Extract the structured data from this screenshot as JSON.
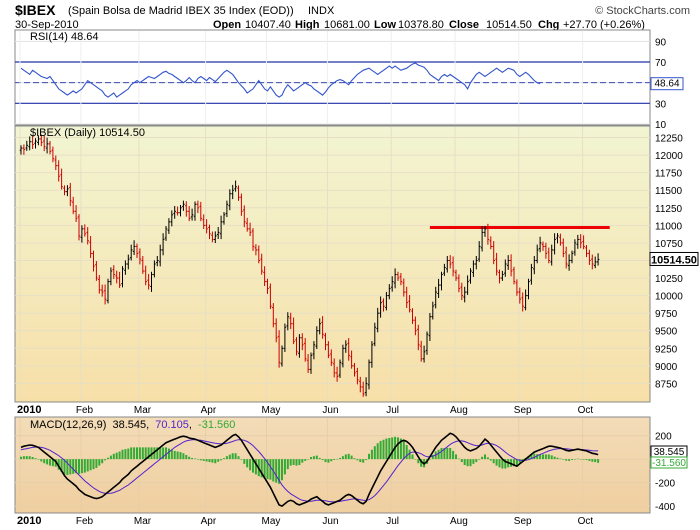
{
  "header": {
    "symbol": "$IBEX",
    "description": "(Spain Bolsa de Madrid IBEX 35 Index (EOD))",
    "exchange": "INDX",
    "brand": "© StockCharts.com",
    "date": "30-Sep-2010",
    "open_label": "Open",
    "open": "10407.40",
    "high_label": "High",
    "high": "10681.00",
    "low_label": "Low",
    "low": "10378.80",
    "close_label": "Close",
    "close": "10514.50",
    "chg_label": "Chg",
    "chg": "+27.70 (+0.26%)"
  },
  "colors": {
    "up_bar": "#000000",
    "down_bar": "#cc0000",
    "rsi_line": "#3355cc",
    "macd_line": "#000000",
    "signal_line": "#5522cc",
    "histogram": "#33aa33",
    "resistance": "#ee0000"
  },
  "chart_data": [
    {
      "type": "line",
      "panel": "rsi",
      "label": "RSI(14) 48.64",
      "last_value_label": "48.64",
      "ylim": [
        10,
        100
      ],
      "yticks": [
        90,
        70,
        50,
        30,
        10
      ],
      "bands": [
        70,
        30
      ],
      "x_step": "trading-day",
      "x_start": "2010-01-04",
      "values": [
        64,
        62,
        60,
        58,
        62,
        60,
        58,
        56,
        55,
        54,
        56,
        52,
        48,
        44,
        42,
        40,
        38,
        40,
        42,
        40,
        42,
        44,
        48,
        52,
        50,
        48,
        46,
        44,
        42,
        38,
        36,
        38,
        40,
        36,
        38,
        40,
        42,
        44,
        48,
        50,
        52,
        50,
        52,
        54,
        56,
        55,
        54,
        56,
        58,
        60,
        61,
        59,
        58,
        56,
        54,
        52,
        50,
        52,
        55,
        52,
        50,
        54,
        56,
        54,
        52,
        55,
        53,
        51,
        54,
        57,
        60,
        62,
        60,
        58,
        54,
        50,
        47,
        44,
        40,
        42,
        44,
        48,
        52,
        48,
        44,
        42,
        46,
        42,
        38,
        36,
        38,
        44,
        48,
        45,
        42,
        44,
        46,
        48,
        50,
        48,
        47,
        44,
        42,
        40,
        38,
        41,
        45,
        48,
        50,
        52,
        53,
        52,
        50,
        48,
        52,
        55,
        58,
        60,
        62,
        63,
        64,
        62,
        60,
        58,
        60,
        62,
        64,
        66,
        64,
        66,
        64,
        62,
        63,
        64,
        66,
        68,
        69,
        67,
        66,
        65,
        62,
        58,
        56,
        54,
        52,
        56,
        58,
        56,
        58,
        56,
        54,
        52,
        50,
        48,
        44,
        50,
        54,
        58,
        60,
        58,
        56,
        58,
        60,
        62,
        64,
        62,
        60,
        62,
        64,
        63,
        62,
        58,
        56,
        58,
        60,
        58,
        55,
        52,
        50,
        49
      ]
    },
    {
      "type": "ohlc",
      "panel": "price",
      "label": "$IBEX (Daily) 10514.50",
      "last_value_label": "10514.50",
      "ylim": [
        8500,
        12400
      ],
      "yticks": [
        12250,
        12000,
        11750,
        11500,
        11250,
        11000,
        10750,
        10500,
        10250,
        10000,
        9750,
        9500,
        9250,
        9000,
        8750
      ],
      "x_step": "trading-day",
      "x_start": "2010-01-04",
      "closes": [
        12100,
        12080,
        12140,
        12190,
        12150,
        12200,
        12230,
        12180,
        12120,
        12160,
        12050,
        11950,
        11850,
        11700,
        11550,
        11480,
        11520,
        11350,
        11200,
        11100,
        10850,
        10950,
        10880,
        10780,
        10600,
        10420,
        10250,
        10080,
        10050,
        9950,
        10200,
        10350,
        10300,
        10250,
        10150,
        10380,
        10450,
        10520,
        10650,
        10700,
        10600,
        10520,
        10350,
        10200,
        10150,
        10300,
        10450,
        10500,
        10650,
        10800,
        10950,
        11050,
        11150,
        11200,
        11180,
        11250,
        11300,
        11200,
        11100,
        11150,
        11300,
        11250,
        11100,
        11000,
        10950,
        10880,
        10800,
        10850,
        10900,
        11050,
        11150,
        11300,
        11450,
        11500,
        11550,
        11400,
        11200,
        11050,
        10950,
        10900,
        10700,
        10650,
        10500,
        10350,
        10200,
        10100,
        9850,
        9600,
        9400,
        9050,
        9250,
        9550,
        9700,
        9600,
        9350,
        9200,
        9400,
        9300,
        9100,
        8950,
        9150,
        9300,
        9500,
        9600,
        9450,
        9300,
        9150,
        9050,
        8900,
        8850,
        9050,
        9250,
        9300,
        9150,
        9000,
        8900,
        8800,
        8700,
        8600,
        8750,
        9050,
        9300,
        9550,
        9750,
        9900,
        9850,
        10000,
        10100,
        10200,
        10300,
        10250,
        10200,
        10050,
        9900,
        9800,
        9650,
        9500,
        9300,
        9100,
        9200,
        9450,
        9700,
        9850,
        10050,
        10150,
        10300,
        10400,
        10500,
        10450,
        10350,
        10250,
        10100,
        10000,
        10050,
        10200,
        10350,
        10450,
        10500,
        10700,
        10900,
        10950,
        10800,
        10700,
        10500,
        10350,
        10250,
        10300,
        10450,
        10500,
        10350,
        10200,
        10050,
        9950,
        9850,
        10000,
        10200,
        10400,
        10500,
        10650,
        10750,
        10700,
        10600,
        10500,
        10650,
        10800,
        10850,
        10750,
        10600,
        10450,
        10500,
        10600,
        10750,
        10800,
        10750,
        10700,
        10600,
        10500,
        10450,
        10480,
        10514.5
      ],
      "resistance": 10970,
      "resistance_range": [
        "2010-07-20",
        "2010-10-15"
      ]
    },
    {
      "type": "line",
      "panel": "macd",
      "label": "MACD(12,26,9) 38.545, 70.105, -31.560",
      "legend": {
        "macd": "38.545",
        "signal": "70.105",
        "histogram": "-31.560"
      },
      "label_prefix": "MACD(12,26,9)",
      "last_value_labels": [
        "38.545",
        "-31.560"
      ],
      "ylim": [
        -450,
        350
      ],
      "yticks": [
        200,
        0,
        -200,
        -400
      ],
      "x_step": "trading-day",
      "x_start": "2010-01-04",
      "macd": [
        100,
        110,
        115,
        120,
        118,
        110,
        100,
        80,
        60,
        40,
        20,
        0,
        -20,
        -60,
        -100,
        -140,
        -170,
        -190,
        -210,
        -230,
        -260,
        -280,
        -300,
        -310,
        -320,
        -330,
        -335,
        -330,
        -320,
        -300,
        -280,
        -260,
        -240,
        -220,
        -200,
        -170,
        -150,
        -130,
        -100,
        -80,
        -60,
        -40,
        -20,
        0,
        20,
        40,
        60,
        80,
        100,
        120,
        140,
        150,
        160,
        170,
        180,
        190,
        195,
        190,
        180,
        175,
        170,
        160,
        150,
        140,
        130,
        120,
        110,
        100,
        110,
        120,
        140,
        160,
        180,
        200,
        210,
        190,
        160,
        120,
        80,
        40,
        0,
        -40,
        -80,
        -120,
        -160,
        -200,
        -240,
        -290,
        -340,
        -390,
        -400,
        -380,
        -360,
        -350,
        -360,
        -380,
        -390,
        -380,
        -370,
        -360,
        -340,
        -330,
        -320,
        -340,
        -360,
        -380,
        -390,
        -380,
        -370,
        -360,
        -350,
        -330,
        -310,
        -300,
        -310,
        -330,
        -350,
        -370,
        -380,
        -360,
        -300,
        -250,
        -200,
        -150,
        -100,
        -60,
        -20,
        20,
        60,
        100,
        130,
        150,
        160,
        150,
        130,
        100,
        60,
        20,
        -20,
        -40,
        -20,
        20,
        60,
        100,
        130,
        160,
        180,
        200,
        220,
        210,
        190,
        160,
        130,
        100,
        80,
        70,
        80,
        90,
        110,
        140,
        170,
        150,
        120,
        90,
        60,
        30,
        0,
        -20,
        -30,
        -40,
        -50,
        -60,
        -40,
        -20,
        0,
        20,
        40,
        60,
        70,
        80,
        90,
        100,
        110,
        110,
        105,
        100,
        95,
        85,
        75,
        70,
        75,
        80,
        85,
        80,
        75,
        70,
        60,
        50,
        45,
        38.545
      ],
      "signal": [
        80,
        85,
        90,
        95,
        100,
        102,
        103,
        100,
        95,
        85,
        75,
        60,
        45,
        30,
        10,
        -10,
        -35,
        -60,
        -85,
        -110,
        -135,
        -160,
        -185,
        -205,
        -225,
        -245,
        -260,
        -275,
        -285,
        -290,
        -292,
        -290,
        -285,
        -275,
        -265,
        -250,
        -235,
        -220,
        -200,
        -180,
        -160,
        -140,
        -120,
        -100,
        -80,
        -60,
        -40,
        -20,
        0,
        20,
        40,
        60,
        80,
        100,
        115,
        130,
        145,
        155,
        160,
        165,
        165,
        163,
        160,
        155,
        150,
        145,
        140,
        135,
        132,
        130,
        132,
        135,
        142,
        150,
        160,
        165,
        165,
        160,
        150,
        135,
        115,
        90,
        65,
        35,
        5,
        -30,
        -65,
        -100,
        -140,
        -180,
        -220,
        -250,
        -275,
        -295,
        -310,
        -325,
        -340,
        -350,
        -355,
        -358,
        -358,
        -355,
        -350,
        -350,
        -352,
        -355,
        -360,
        -362,
        -363,
        -362,
        -360,
        -355,
        -350,
        -345,
        -340,
        -338,
        -340,
        -345,
        -350,
        -352,
        -345,
        -330,
        -310,
        -285,
        -255,
        -225,
        -195,
        -160,
        -125,
        -90,
        -55,
        -25,
        5,
        30,
        50,
        60,
        60,
        55,
        45,
        30,
        20,
        20,
        25,
        35,
        50,
        65,
        85,
        105,
        125,
        140,
        150,
        155,
        155,
        150,
        140,
        130,
        120,
        115,
        115,
        120,
        130,
        135,
        132,
        125,
        115,
        100,
        80,
        60,
        40,
        25,
        10,
        -5,
        -10,
        -12,
        -10,
        -5,
        5,
        15,
        28,
        40,
        50,
        60,
        70,
        78,
        84,
        88,
        90,
        90,
        88,
        85,
        82,
        81,
        81,
        81,
        80,
        78,
        75,
        72,
        70,
        70.105
      ]
    }
  ],
  "x_axis": {
    "months": [
      "2010",
      "Feb",
      "Mar",
      "Apr",
      "May",
      "Jun",
      "Jul",
      "Aug",
      "Sep",
      "Oct"
    ],
    "month_start_index": [
      0,
      21,
      41,
      64,
      85,
      106,
      128,
      150,
      172,
      194
    ]
  }
}
